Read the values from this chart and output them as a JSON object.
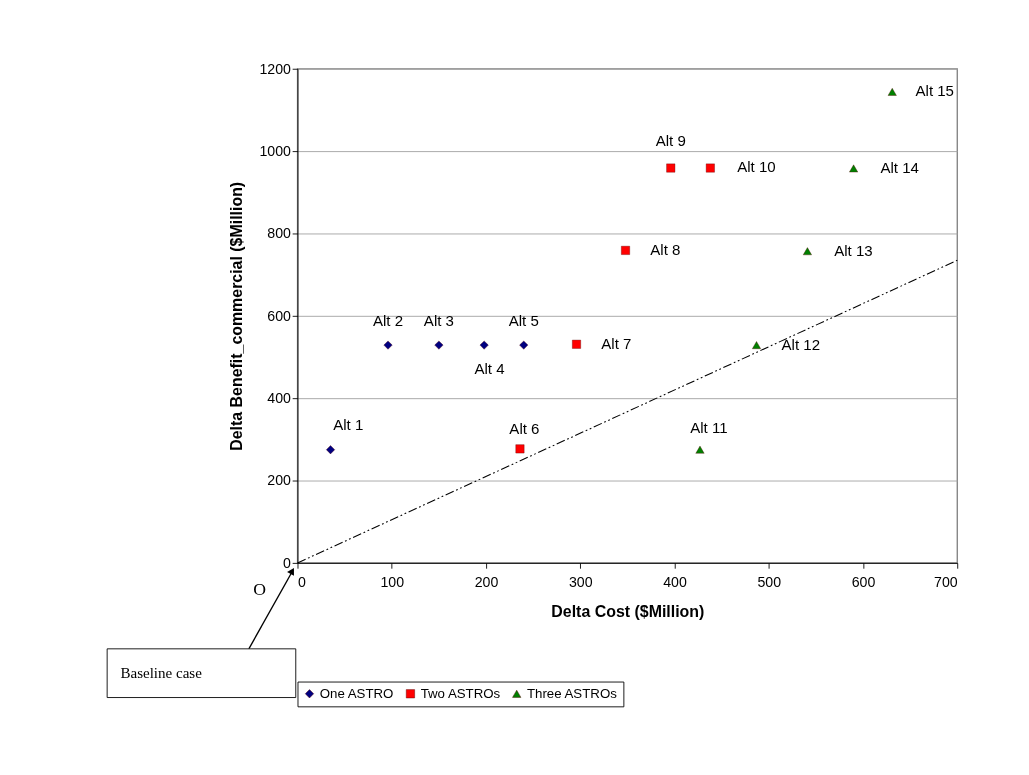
{
  "chart_data": {
    "type": "scatter",
    "xlabel": "Delta Cost ($Million)",
    "ylabel": "Delta Benefit_commercial ($Million)",
    "xlim": [
      0,
      700
    ],
    "xticks": [
      0,
      100,
      200,
      300,
      400,
      500,
      600,
      700
    ],
    "ylim": [
      0,
      1200
    ],
    "yticks": [
      0,
      200,
      400,
      600,
      800,
      1000,
      1200
    ],
    "grid": "y",
    "legend": "bottom",
    "series": [
      {
        "name": "One ASTRO",
        "color": "#000080",
        "marker": "diamond",
        "x": [
          35,
          96,
          150,
          198,
          240
        ],
        "values": [
          275,
          529,
          529,
          529,
          529
        ]
      },
      {
        "name": "Two ASTROs",
        "color": "#ff0000",
        "marker": "square",
        "x": [
          236,
          296,
          348,
          396,
          438
        ],
        "values": [
          277,
          531,
          759,
          959,
          959
        ]
      },
      {
        "name": "Three ASTROs",
        "color": "#008000",
        "marker": "triangle",
        "x": [
          427,
          487,
          541,
          590,
          631
        ],
        "values": [
          275,
          529,
          757,
          958,
          1144
        ]
      },
      {
        "type": "line",
        "color": "#000000",
        "line_style": "dashed",
        "x": [
          0,
          700
        ],
        "values": [
          0,
          735
        ]
      }
    ],
    "annotations": [
      {
        "text": "Alt 1",
        "x": 35,
        "y": 275
      },
      {
        "text": "Alt 2",
        "x": 96,
        "y": 529
      },
      {
        "text": "Alt 3",
        "x": 150,
        "y": 529
      },
      {
        "text": "Alt 4",
        "x": 198,
        "y": 529
      },
      {
        "text": "Alt 5",
        "x": 240,
        "y": 529
      },
      {
        "text": "Alt 6",
        "x": 236,
        "y": 277
      },
      {
        "text": "Alt 7",
        "x": 296,
        "y": 531
      },
      {
        "text": "Alt 8",
        "x": 348,
        "y": 759
      },
      {
        "text": "Alt 9",
        "x": 396,
        "y": 959
      },
      {
        "text": "Alt 10",
        "x": 438,
        "y": 959
      },
      {
        "text": "Alt 11",
        "x": 427,
        "y": 275
      },
      {
        "text": "Alt 12",
        "x": 487,
        "y": 529
      },
      {
        "text": "Alt 13",
        "x": 541,
        "y": 757
      },
      {
        "text": "Alt 14",
        "x": 590,
        "y": 958
      },
      {
        "text": "Alt 15",
        "x": 631,
        "y": 1144
      },
      "O",
      "Baseline case"
    ]
  }
}
